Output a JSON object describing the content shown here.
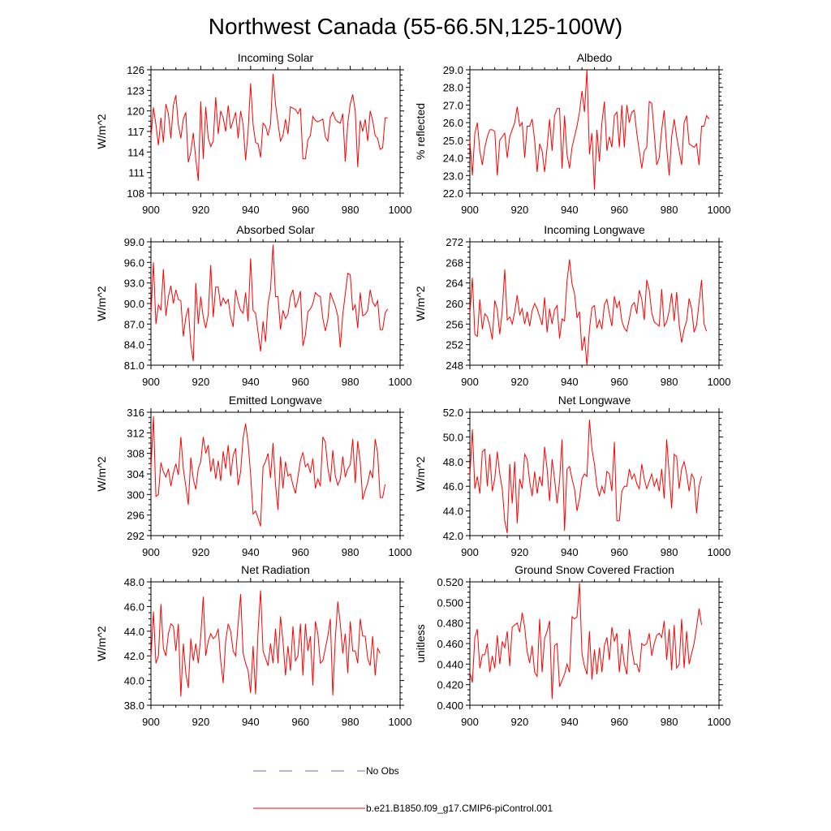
{
  "figure": {
    "title": "Northwest Canada (55-66.5N,125-100W)",
    "legend": [
      {
        "label": "No Obs",
        "style": "dashed",
        "color": "#6a6ad0"
      },
      {
        "label": "b.e21.B1850.f09_g17.CMIP6-piControl.001",
        "style": "solid",
        "color": "#ff0000"
      }
    ],
    "series_color": "#ff0000"
  },
  "chart_data": [
    {
      "type": "line",
      "title": "Incoming Solar",
      "ylabel": "W/m^2",
      "xlabel": "",
      "xlim": [
        900,
        1000
      ],
      "ylim": [
        108,
        126
      ],
      "xticks": [
        900,
        920,
        940,
        960,
        980,
        1000
      ],
      "yticks": [
        "108",
        "111",
        "114",
        "117",
        "120",
        "123",
        "126"
      ],
      "x_start": 900,
      "values": [
        116.2,
        120.5,
        118.0,
        115.0,
        119.0,
        115.4,
        121.0,
        119.6,
        116.0,
        120.8,
        122.3,
        118.0,
        116.0,
        118.8,
        119.8,
        112.5,
        114.0,
        116.8,
        113.0,
        109.8,
        121.4,
        113.0,
        120.6,
        116.0,
        114.8,
        115.6,
        122.0,
        116.6,
        120.0,
        119.0,
        117.0,
        120.8,
        117.4,
        118.6,
        119.8,
        116.0,
        120.0,
        118.0,
        112.8,
        117.0,
        124.0,
        118.0,
        115.4,
        115.2,
        113.2,
        118.2,
        117.8,
        116.4,
        118.0,
        125.4,
        121.0,
        118.2,
        115.6,
        116.4,
        118.8,
        116.6,
        120.6,
        120.4,
        120.2,
        119.6,
        120.4,
        113.0,
        113.0,
        115.8,
        116.4,
        119.2,
        118.6,
        118.4,
        118.6,
        118.8,
        116.2,
        115.6,
        119.0,
        119.8,
        118.8,
        118.4,
        118.2,
        119.6,
        112.6,
        118.2,
        121.0,
        122.4,
        120.0,
        111.8,
        118.6,
        117.0,
        118.8,
        115.6,
        120.0,
        118.6,
        116.4,
        116.0,
        114.4,
        114.6,
        119.0,
        119.0
      ]
    },
    {
      "type": "line",
      "title": "Albedo",
      "ylabel": "% reflected",
      "xlabel": "",
      "xlim": [
        900,
        1000
      ],
      "ylim": [
        22,
        29
      ],
      "xticks": [
        900,
        920,
        940,
        960,
        980,
        1000
      ],
      "yticks": [
        "22.0",
        "23.0",
        "24.0",
        "25.0",
        "26.0",
        "27.0",
        "28.0",
        "29.0"
      ],
      "x_start": 900,
      "values": [
        25.0,
        23.0,
        25.4,
        26.0,
        24.4,
        23.6,
        24.6,
        25.2,
        25.6,
        25.6,
        25.5,
        23.0,
        25.0,
        25.2,
        25.4,
        24.0,
        25.2,
        25.6,
        26.0,
        26.9,
        25.8,
        26.0,
        24.0,
        25.8,
        25.8,
        26.2,
        25.0,
        23.2,
        24.8,
        24.4,
        23.2,
        24.6,
        26.2,
        24.4,
        26.4,
        26.8,
        26.8,
        23.4,
        26.4,
        24.2,
        23.4,
        24.6,
        25.2,
        25.8,
        26.6,
        27.8,
        26.6,
        29.0,
        24.2,
        25.4,
        22.2,
        25.6,
        23.8,
        26.0,
        27.2,
        24.4,
        25.2,
        24.6,
        26.4,
        26.6,
        24.6,
        27.0,
        24.6,
        27.0,
        26.0,
        26.6,
        26.7,
        25.4,
        24.4,
        23.4,
        24.4,
        24.6,
        27.2,
        27.1,
        25.4,
        23.6,
        24.0,
        25.6,
        26.7,
        24.6,
        23.0,
        25.2,
        26.2,
        25.2,
        24.4,
        23.6,
        26.0,
        26.4,
        24.8,
        24.7,
        24.6,
        24.8,
        23.6,
        25.8,
        25.8,
        26.4,
        26.2
      ]
    },
    {
      "type": "line",
      "title": "Absorbed Solar",
      "ylabel": "W/m^2",
      "xlabel": "",
      "xlim": [
        900,
        1000
      ],
      "ylim": [
        81,
        99
      ],
      "xticks": [
        900,
        920,
        940,
        960,
        980,
        1000
      ],
      "yticks": [
        "81.0",
        "84.0",
        "87.0",
        "90.0",
        "93.0",
        "96.0",
        "99.0"
      ],
      "x_start": 900,
      "values": [
        88.4,
        96.0,
        87.0,
        89.8,
        89.0,
        95.0,
        88.2,
        91.0,
        92.6,
        90.0,
        92.0,
        90.6,
        90.4,
        85.2,
        88.0,
        89.4,
        84.0,
        81.6,
        93.0,
        87.0,
        91.0,
        88.0,
        86.4,
        88.4,
        95.6,
        88.0,
        92.4,
        92.4,
        89.6,
        90.8,
        90.0,
        90.6,
        88.0,
        86.6,
        92.0,
        90.2,
        89.0,
        88.6,
        91.6,
        87.4,
        96.6,
        89.0,
        88.6,
        85.8,
        83.0,
        87.4,
        84.4,
        90.0,
        92.0,
        98.6,
        91.0,
        91.0,
        86.2,
        89.0,
        87.8,
        88.4,
        91.0,
        92.0,
        89.4,
        90.4,
        91.8,
        83.8,
        85.4,
        88.8,
        89.2,
        90.0,
        91.6,
        91.2,
        91.0,
        87.8,
        86.0,
        87.6,
        91.6,
        90.6,
        89.6,
        88.2,
        83.6,
        88.4,
        91.4,
        94.4,
        94.2,
        89.0,
        89.8,
        86.4,
        91.6,
        88.2,
        88.4,
        89.0,
        92.0,
        90.2,
        89.6,
        90.4,
        86.2,
        86.2,
        88.6,
        89.2
      ]
    },
    {
      "type": "line",
      "title": "Incoming Longwave",
      "ylabel": "W/m^2",
      "xlabel": "",
      "xlim": [
        900,
        1000
      ],
      "ylim": [
        248,
        272
      ],
      "xticks": [
        900,
        920,
        940,
        960,
        980,
        1000
      ],
      "yticks": [
        "248",
        "252",
        "256",
        "260",
        "264",
        "268",
        "272"
      ],
      "x_start": 900,
      "values": [
        258.0,
        265.0,
        254.0,
        253.6,
        260.8,
        255.0,
        258.0,
        257.4,
        255.6,
        253.0,
        260.6,
        258.8,
        254.0,
        258.6,
        266.6,
        256.8,
        257.4,
        256.0,
        258.4,
        261.6,
        257.8,
        259.0,
        256.0,
        258.4,
        255.6,
        258.6,
        260.0,
        259.0,
        257.4,
        255.8,
        261.2,
        254.4,
        259.0,
        256.0,
        258.8,
        259.6,
        253.2,
        257.0,
        256.6,
        264.4,
        268.6,
        263.8,
        262.0,
        257.2,
        258.4,
        250.8,
        253.6,
        248.0,
        255.0,
        259.2,
        259.6,
        255.2,
        256.8,
        255.0,
        259.8,
        260.8,
        258.0,
        255.6,
        261.4,
        259.2,
        260.4,
        256.6,
        255.2,
        254.6,
        257.0,
        259.6,
        260.2,
        258.0,
        262.6,
        260.8,
        256.8,
        264.6,
        262.6,
        258.2,
        256.4,
        256.0,
        255.6,
        262.8,
        255.6,
        256.4,
        258.6,
        262.0,
        256.6,
        262.2,
        256.0,
        252.4,
        255.0,
        256.6,
        261.0,
        259.0,
        254.4,
        255.8,
        260.2,
        264.6,
        256.0,
        254.6
      ]
    },
    {
      "type": "line",
      "title": "Emitted Longwave",
      "ylabel": "W/m^2",
      "xlabel": "",
      "xlim": [
        900,
        1000
      ],
      "ylim": [
        292,
        316
      ],
      "xticks": [
        900,
        920,
        940,
        960,
        980,
        1000
      ],
      "yticks": [
        "292",
        "296",
        "300",
        "304",
        "308",
        "312",
        "316"
      ],
      "x_start": 900,
      "values": [
        305.0,
        315.2,
        299.6,
        300.0,
        306.2,
        304.4,
        303.4,
        305.0,
        301.6,
        304.2,
        306.0,
        303.8,
        311.2,
        305.0,
        301.6,
        298.0,
        307.2,
        303.0,
        301.0,
        305.0,
        306.4,
        311.2,
        308.0,
        309.6,
        304.4,
        307.0,
        303.0,
        306.6,
        302.6,
        308.4,
        305.0,
        309.6,
        303.6,
        307.6,
        309.0,
        301.8,
        304.4,
        311.0,
        313.8,
        310.0,
        304.0,
        296.2,
        296.8,
        295.4,
        293.8,
        305.4,
        306.4,
        308.0,
        303.2,
        310.0,
        302.0,
        297.0,
        307.4,
        301.2,
        306.4,
        303.6,
        304.0,
        301.8,
        300.2,
        303.4,
        306.6,
        308.2,
        305.4,
        306.0,
        304.2,
        307.0,
        301.2,
        303.0,
        301.6,
        311.2,
        310.2,
        305.2,
        302.4,
        308.6,
        303.6,
        301.8,
        303.0,
        307.4,
        303.4,
        305.0,
        305.8,
        310.8,
        302.2,
        310.4,
        306.4,
        299.0,
        300.8,
        302.2,
        304.6,
        303.2,
        310.8,
        308.0,
        299.4,
        299.4,
        302.0
      ]
    },
    {
      "type": "line",
      "title": "Net Longwave",
      "ylabel": "W/m^2",
      "xlabel": "",
      "xlim": [
        900,
        1000
      ],
      "ylim": [
        42,
        52
      ],
      "xticks": [
        900,
        920,
        940,
        960,
        980,
        1000
      ],
      "yticks": [
        "42.0",
        "44.0",
        "46.0",
        "48.0",
        "50.0",
        "52.0"
      ],
      "x_start": 900,
      "values": [
        46.8,
        50.6,
        45.8,
        46.8,
        45.4,
        48.8,
        49.0,
        46.0,
        48.6,
        45.6,
        46.6,
        48.8,
        47.0,
        45.8,
        43.2,
        42.2,
        47.8,
        44.6,
        48.0,
        43.0,
        46.6,
        45.8,
        48.6,
        48.2,
        46.4,
        45.2,
        47.2,
        45.4,
        46.8,
        46.0,
        49.2,
        47.4,
        44.8,
        48.2,
        46.6,
        44.6,
        46.4,
        49.8,
        42.4,
        47.4,
        47.6,
        46.6,
        45.8,
        44.0,
        45.0,
        46.6,
        47.0,
        46.8,
        51.4,
        49.0,
        47.8,
        46.0,
        45.2,
        46.0,
        45.4,
        47.2,
        47.0,
        45.6,
        49.6,
        43.2,
        43.2,
        45.6,
        46.0,
        46.0,
        47.4,
        46.6,
        47.0,
        46.2,
        45.8,
        47.8,
        46.6,
        45.8,
        46.4,
        47.0,
        46.0,
        46.6,
        45.6,
        47.4,
        45.0,
        49.8,
        47.0,
        44.2,
        48.6,
        48.4,
        45.8,
        47.4,
        48.0,
        47.0,
        45.6,
        47.0,
        46.6,
        43.8,
        46.0,
        46.8
      ]
    },
    {
      "type": "line",
      "title": "Net Radiation",
      "ylabel": "W/m^2",
      "xlabel": "",
      "xlim": [
        900,
        1000
      ],
      "ylim": [
        38,
        48
      ],
      "xticks": [
        900,
        920,
        940,
        960,
        980,
        1000
      ],
      "yticks": [
        "38.0",
        "40.0",
        "42.0",
        "44.0",
        "46.0",
        "48.0"
      ],
      "x_start": 900,
      "values": [
        41.8,
        45.6,
        41.4,
        42.0,
        46.2,
        42.6,
        42.0,
        43.8,
        44.6,
        44.4,
        42.4,
        44.6,
        38.7,
        43.0,
        40.6,
        39.4,
        43.4,
        41.6,
        43.0,
        41.4,
        43.6,
        46.8,
        42.0,
        43.2,
        43.8,
        43.4,
        43.6,
        44.2,
        41.6,
        39.8,
        43.2,
        44.6,
        44.0,
        42.4,
        42.0,
        44.6,
        47.0,
        42.2,
        41.4,
        40.8,
        39.0,
        42.8,
        38.9,
        44.0,
        47.3,
        42.4,
        41.8,
        41.2,
        43.0,
        41.4,
        44.2,
        41.4,
        45.2,
        43.2,
        40.4,
        42.8,
        40.8,
        44.4,
        41.6,
        42.0,
        44.6,
        40.4,
        44.6,
        42.4,
        43.6,
        39.6,
        44.8,
        43.8,
        41.4,
        41.6,
        42.6,
        43.6,
        45.0,
        38.8,
        43.4,
        46.4,
        44.6,
        42.2,
        43.8,
        40.6,
        44.8,
        42.4,
        42.4,
        41.4,
        45.0,
        43.6,
        43.6,
        41.8,
        41.2,
        43.6,
        40.4,
        42.6,
        42.2
      ]
    },
    {
      "type": "line",
      "title": "Ground Snow Covered Fraction",
      "ylabel": "unitless",
      "xlabel": "",
      "xlim": [
        900,
        1000
      ],
      "ylim": [
        0.4,
        0.52
      ],
      "xticks": [
        900,
        920,
        940,
        960,
        980,
        1000
      ],
      "yticks": [
        "0.400",
        "0.420",
        "0.440",
        "0.460",
        "0.480",
        "0.500",
        "0.520"
      ],
      "x_start": 900,
      "values": [
        0.432,
        0.422,
        0.466,
        0.474,
        0.436,
        0.449,
        0.449,
        0.46,
        0.432,
        0.448,
        0.436,
        0.468,
        0.44,
        0.462,
        0.456,
        0.472,
        0.438,
        0.476,
        0.478,
        0.48,
        0.471,
        0.49,
        0.476,
        0.452,
        0.441,
        0.458,
        0.432,
        0.428,
        0.484,
        0.432,
        0.465,
        0.472,
        0.482,
        0.406,
        0.458,
        0.46,
        0.418,
        0.424,
        0.43,
        0.44,
        0.432,
        0.486,
        0.484,
        0.486,
        0.519,
        0.45,
        0.438,
        0.43,
        0.472,
        0.425,
        0.454,
        0.43,
        0.456,
        0.432,
        0.458,
        0.466,
        0.444,
        0.476,
        0.462,
        0.47,
        0.432,
        0.46,
        0.44,
        0.43,
        0.474,
        0.455,
        0.44,
        0.44,
        0.432,
        0.46,
        0.458,
        0.46,
        0.47,
        0.448,
        0.46,
        0.468,
        0.47,
        0.466,
        0.482,
        0.444,
        0.474,
        0.434,
        0.478,
        0.436,
        0.44,
        0.484,
        0.436,
        0.472,
        0.44,
        0.45,
        0.46,
        0.476,
        0.494,
        0.478
      ]
    }
  ]
}
